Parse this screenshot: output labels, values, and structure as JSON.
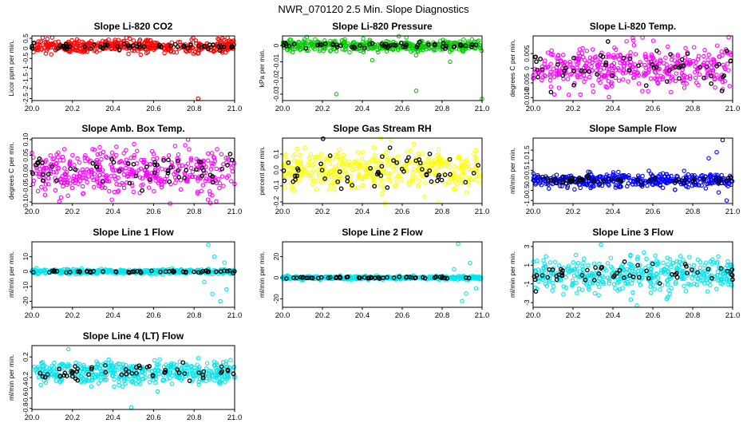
{
  "page_title": "NWR_070120  2.5 Min. Slope Diagnostics",
  "colors": {
    "red": "#ff0000",
    "green": "#00cc00",
    "magenta": "#ff00ff",
    "yellow": "#ffff00",
    "blue": "#0000ff",
    "cyan": "#00e5ee",
    "black": "#000000"
  },
  "chart_data": [
    {
      "type": "scatter",
      "title": "Slope Li-820 CO2",
      "ylabel": "Licor ppm per min.",
      "xlim": [
        20.0,
        21.0
      ],
      "xticks": [
        "20.0",
        "20.2",
        "20.4",
        "20.6",
        "20.8",
        "21.0"
      ],
      "ylim": [
        -2.6,
        0.62
      ],
      "yticks": [
        0.5,
        0,
        -0.5,
        -1,
        -1.5,
        -2,
        -2.5
      ],
      "ytick_labels": [
        "0.5",
        "0",
        "-0.5",
        "-1",
        "-1.5",
        "-2",
        "-2.5"
      ],
      "series_color": "red",
      "center": 0.1,
      "spread": 0.16,
      "outliers": [
        [
          20.82,
          -2.5
        ],
        [
          20.94,
          0.5
        ]
      ],
      "black_spread": 0.08
    },
    {
      "type": "scatter",
      "title": "Slope Li-820 Pressure",
      "ylabel": "kPa per min.",
      "xlim": [
        20.0,
        21.0
      ],
      "xticks": [
        "20.0",
        "20.2",
        "20.4",
        "20.6",
        "20.8",
        "21.0"
      ],
      "ylim": [
        -0.034,
        0.006
      ],
      "yticks": [
        0.0,
        -0.01,
        -0.02,
        -0.03
      ],
      "ytick_labels": [
        "0",
        "-0.01",
        "-0.02",
        "-0.03"
      ],
      "series_color": "green",
      "center": 0.0,
      "spread": 0.0018,
      "outliers": [
        [
          20.27,
          -0.03
        ],
        [
          20.67,
          -0.028
        ],
        [
          21.0,
          -0.033
        ],
        [
          20.45,
          -0.009
        ],
        [
          20.84,
          -0.01
        ]
      ],
      "black_spread": 0.001
    },
    {
      "type": "scatter",
      "title": "Slope Li-820 Temp.",
      "ylabel": "degrees C per min.",
      "xlim": [
        20.0,
        21.0
      ],
      "xticks": [
        "20.0",
        "20.2",
        "20.4",
        "20.6",
        "20.8",
        "21.0"
      ],
      "ylim": [
        -0.011,
        0.011
      ],
      "yticks": [
        0.005,
        0.0,
        -0.005,
        -0.01
      ],
      "ytick_labels": [
        "0.005",
        "0",
        "-0.005",
        "-0.010"
      ],
      "series_color": "magenta",
      "center": 0.0,
      "spread": 0.0036,
      "outliers": [
        [
          20.98,
          0.0105
        ],
        [
          20.38,
          -0.0098
        ]
      ],
      "black_spread": 0.003
    },
    {
      "type": "scatter",
      "title": "Slope Amb. Box Temp.",
      "ylabel": "degrees C per min.",
      "xlim": [
        20.0,
        21.0
      ],
      "xticks": [
        "20.0",
        "20.2",
        "20.4",
        "20.6",
        "20.8",
        "21.0"
      ],
      "ylim": [
        -0.105,
        0.105
      ],
      "yticks": [
        0.1,
        0.05,
        0.0,
        -0.05,
        -0.1
      ],
      "ytick_labels": [
        "0.10",
        "0.05",
        "0.00",
        "-0.05",
        "-0.10"
      ],
      "series_color": "magenta",
      "center": 0.0,
      "spread": 0.035,
      "outliers": [
        [
          20.77,
          0.1
        ],
        [
          20.91,
          -0.098
        ]
      ],
      "black_spread": 0.025
    },
    {
      "type": "scatter",
      "title": "Slope Gas Stream RH",
      "ylabel": "percent per min.",
      "xlim": [
        20.0,
        21.0
      ],
      "xticks": [
        "20.0",
        "20.2",
        "20.4",
        "20.6",
        "20.8",
        "21.0"
      ],
      "ylim": [
        -0.21,
        0.2
      ],
      "yticks": [
        0.1,
        0.0,
        -0.1,
        -0.2
      ],
      "ytick_labels": [
        "0.1",
        "0.0",
        "-0.1",
        "-0.2"
      ],
      "series_color": "yellow",
      "center": 0.0,
      "spread": 0.065,
      "outliers": [
        [
          20.78,
          -0.2
        ]
      ],
      "black_spread": 0.06
    },
    {
      "type": "scatter",
      "title": "Slope Sample Flow",
      "ylabel": "ml/min per min.",
      "xlim": [
        20.0,
        21.0
      ],
      "xticks": [
        "20.0",
        "20.2",
        "20.4",
        "20.6",
        "20.8",
        "21.0"
      ],
      "ylim": [
        -1.15,
        2.1
      ],
      "yticks": [
        1.5,
        1.0,
        0.5,
        0.0,
        -0.5,
        -1.0
      ],
      "ytick_labels": [
        "1.5",
        "1.0",
        "0.5",
        "0.0",
        "-0.5",
        "-1.0"
      ],
      "series_color": "blue",
      "center": 0.0,
      "spread": 0.16,
      "outliers": [
        [
          20.95,
          2.0
        ],
        [
          20.92,
          1.4
        ],
        [
          20.88,
          1.1
        ],
        [
          20.97,
          -1.0
        ],
        [
          20.93,
          -0.6
        ]
      ],
      "black_spread": 0.1
    },
    {
      "type": "scatter",
      "title": "Slope Line 1 Flow",
      "ylabel": "ml/min per min.",
      "xlim": [
        20.0,
        21.0
      ],
      "xticks": [
        "20.0",
        "20.2",
        "20.4",
        "20.6",
        "20.8",
        "21.0"
      ],
      "ylim": [
        -24,
        20
      ],
      "yticks": [
        10,
        0,
        -10,
        -20
      ],
      "ytick_labels": [
        "10",
        "0",
        "-10",
        "-20"
      ],
      "series_color": "cyan",
      "center": 0.0,
      "spread": 0.8,
      "outliers": [
        [
          20.87,
          18
        ],
        [
          20.9,
          10
        ],
        [
          20.93,
          -20
        ],
        [
          20.96,
          -12
        ],
        [
          20.85,
          -7
        ],
        [
          20.95,
          6
        ],
        [
          20.89,
          -15
        ]
      ],
      "black_spread": 0.5
    },
    {
      "type": "scatter",
      "title": "Slope Line 2 Flow",
      "ylabel": "ml/min per min.",
      "xlim": [
        20.0,
        21.0
      ],
      "xticks": [
        "20.0",
        "20.2",
        "20.4",
        "20.6",
        "20.8",
        "21.0"
      ],
      "ylim": [
        -28,
        34
      ],
      "yticks": [
        20,
        0,
        -20
      ],
      "ytick_labels": [
        "20",
        "0",
        "-20"
      ],
      "series_color": "cyan",
      "center": 0.0,
      "spread": 0.8,
      "outliers": [
        [
          20.88,
          32
        ],
        [
          20.9,
          -22
        ],
        [
          20.94,
          14
        ],
        [
          20.97,
          -10
        ],
        [
          20.86,
          8
        ],
        [
          20.92,
          -15
        ]
      ],
      "black_spread": 0.5
    },
    {
      "type": "scatter",
      "title": "Slope Line 3 Flow",
      "ylabel": "ml/min per min.",
      "xlim": [
        20.0,
        21.0
      ],
      "xticks": [
        "20.0",
        "20.2",
        "20.4",
        "20.6",
        "20.8",
        "21.0"
      ],
      "ylim": [
        -3.5,
        3.5
      ],
      "yticks": [
        3,
        1,
        -1,
        -3
      ],
      "ytick_labels": [
        "3",
        "1",
        "-1",
        "-3"
      ],
      "series_color": "cyan",
      "center": 0.0,
      "spread": 0.9,
      "outliers": [
        [
          20.34,
          3.2
        ],
        [
          20.52,
          -3.3
        ]
      ],
      "black_spread": 0.6
    },
    {
      "type": "scatter",
      "title": "Slope Line 4 (LT) Flow",
      "ylabel": "ml/min per min.",
      "xlim": [
        20.0,
        21.0
      ],
      "xticks": [
        "20.0",
        "20.2",
        "20.4",
        "20.6",
        "20.8",
        "21.0"
      ],
      "ylim": [
        -0.82,
        0.42
      ],
      "yticks": [
        0.2,
        -0.2,
        -0.4,
        -0.6,
        -0.8
      ],
      "ytick_labels": [
        "0.2",
        "-0.2",
        "-0.4",
        "-0.6",
        "-0.8"
      ],
      "series_color": "cyan",
      "center": -0.1,
      "spread": 0.11,
      "outliers": [
        [
          20.49,
          -0.78
        ],
        [
          20.18,
          0.35
        ]
      ],
      "black_spread": 0.08
    }
  ]
}
